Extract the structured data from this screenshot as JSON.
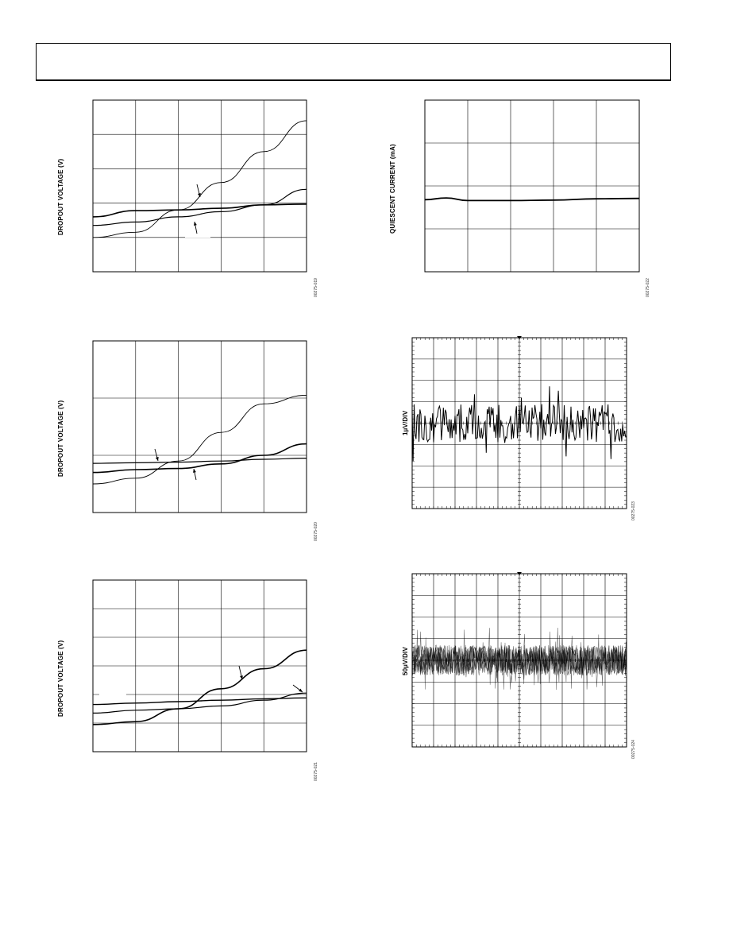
{
  "colors": {
    "ink": "#000000",
    "grid": "#000000",
    "paper": "#ffffff"
  },
  "figures": [
    {
      "ylabel": "DROPOUT VOLTAGE (V)",
      "fig_id": "00275-019"
    },
    {
      "ylabel": "QUIESCENT CURRENT (mA)",
      "fig_id": "00275-022"
    },
    {
      "ylabel": "DROPOUT VOLTAGE (V)",
      "fig_id": "00275-020"
    },
    {
      "ylabel": "1µV/DIV",
      "fig_id": "00275-023"
    },
    {
      "ylabel": "DROPOUT VOLTAGE (V)",
      "fig_id": "00275-021"
    },
    {
      "ylabel": "50µV/DIV",
      "fig_id": "00275-024"
    }
  ],
  "chart_data": [
    {
      "type": "line",
      "title": "",
      "ylabel": "DROPOUT VOLTAGE (V)",
      "xlim": [
        0,
        5
      ],
      "ylim": [
        0,
        5
      ],
      "grid": true,
      "series": [
        {
          "x": [
            0,
            1,
            2,
            3,
            4,
            5
          ],
          "y": [
            1.0,
            1.15,
            1.8,
            2.6,
            3.5,
            4.4
          ]
        },
        {
          "x": [
            0,
            1,
            2,
            3,
            4,
            5
          ],
          "y": [
            1.35,
            1.45,
            1.6,
            1.75,
            1.95,
            2.4
          ]
        },
        {
          "x": [
            0,
            1,
            2,
            3,
            4,
            5
          ],
          "y": [
            1.6,
            1.78,
            1.8,
            1.85,
            1.95,
            1.97
          ]
        }
      ]
    },
    {
      "type": "line",
      "title": "",
      "ylabel": "QUIESCENT CURRENT (mA)",
      "xlim": [
        0,
        5
      ],
      "ylim": [
        0,
        4
      ],
      "grid": true,
      "series": [
        {
          "x": [
            0,
            0.5,
            1,
            2,
            3,
            4,
            5
          ],
          "y": [
            1.68,
            1.72,
            1.66,
            1.66,
            1.67,
            1.7,
            1.71
          ]
        }
      ]
    },
    {
      "type": "line",
      "title": "",
      "ylabel": "DROPOUT VOLTAGE (V)",
      "xlim": [
        0,
        5
      ],
      "ylim": [
        0,
        3
      ],
      "grid": true,
      "series": [
        {
          "x": [
            0,
            1,
            2,
            3,
            4,
            5
          ],
          "y": [
            0.5,
            0.6,
            0.9,
            1.4,
            1.9,
            2.05
          ]
        },
        {
          "x": [
            0,
            1,
            2,
            3,
            4,
            5
          ],
          "y": [
            0.7,
            0.75,
            0.77,
            0.85,
            1.0,
            1.2
          ]
        },
        {
          "x": [
            0,
            1,
            2,
            3,
            4,
            5
          ],
          "y": [
            0.86,
            0.87,
            0.88,
            0.9,
            0.93,
            0.95
          ]
        }
      ]
    },
    {
      "type": "line",
      "title": "",
      "ylabel": "1µV/DIV",
      "xlim": [
        0,
        10
      ],
      "ylim": [
        -4,
        4
      ],
      "grid": true,
      "series": [
        {
          "x": [
            0,
            10
          ],
          "y": [
            0,
            0
          ],
          "noise_amplitude_div": 0.9
        }
      ]
    },
    {
      "type": "line",
      "title": "",
      "ylabel": "DROPOUT VOLTAGE (V)",
      "xlim": [
        0,
        5
      ],
      "ylim": [
        0,
        6
      ],
      "grid": true,
      "series": [
        {
          "x": [
            0,
            1,
            2,
            3,
            4,
            5
          ],
          "y": [
            0.95,
            1.05,
            1.5,
            2.2,
            2.9,
            3.55
          ]
        },
        {
          "x": [
            0,
            1,
            2,
            3,
            4,
            5
          ],
          "y": [
            1.35,
            1.45,
            1.5,
            1.6,
            1.8,
            2.05
          ]
        },
        {
          "x": [
            0,
            1,
            2,
            3,
            4,
            5
          ],
          "y": [
            1.65,
            1.7,
            1.75,
            1.8,
            1.85,
            1.88
          ]
        }
      ]
    },
    {
      "type": "line",
      "title": "",
      "ylabel": "50µV/DIV",
      "xlim": [
        0,
        10
      ],
      "ylim": [
        -4,
        4
      ],
      "grid": true,
      "series": [
        {
          "x": [
            0,
            10
          ],
          "y": [
            0,
            0
          ],
          "noise_amplitude_div": 0.7
        }
      ]
    }
  ]
}
